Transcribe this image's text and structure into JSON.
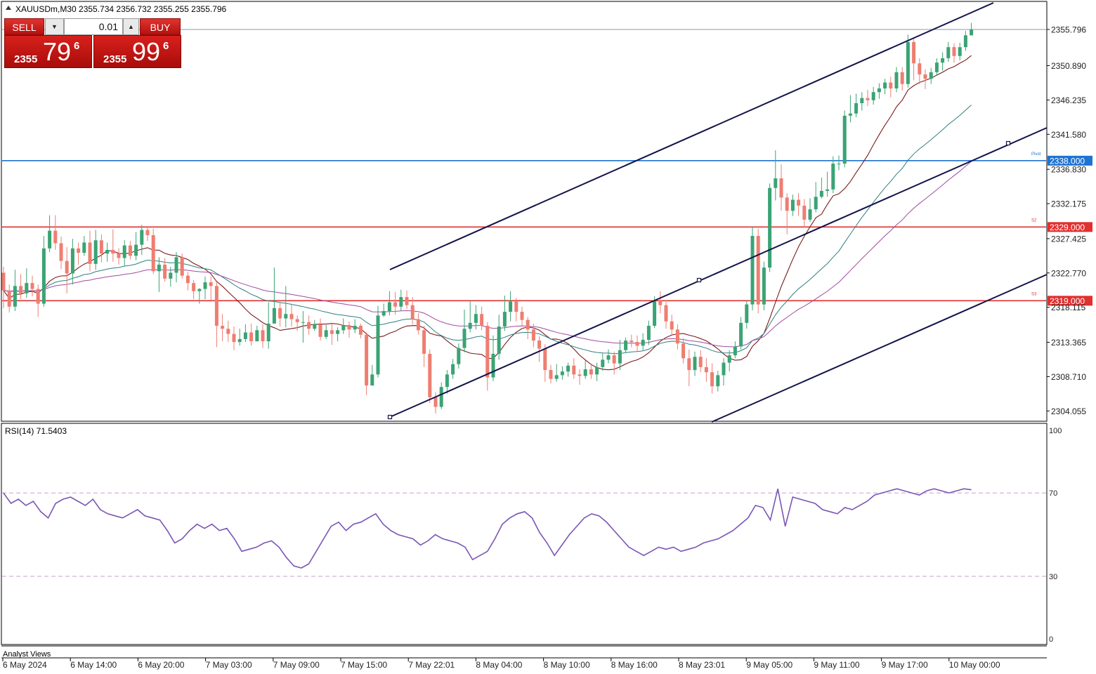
{
  "header": {
    "symbol_line": "XAUUSDm,M30 2355.734 2356.732 2355.255 2355.796"
  },
  "trade_panel": {
    "sell_label": "SELL",
    "buy_label": "BUY",
    "volume": "0.01",
    "sell_price": {
      "prefix": "2355",
      "big": "79",
      "sup": "6"
    },
    "buy_price": {
      "prefix": "2355",
      "big": "99",
      "sup": "6"
    }
  },
  "price_axis": {
    "ticks": [
      "2355.796",
      "2350.890",
      "2346.235",
      "2341.580",
      "2338.000",
      "2336.830",
      "2332.175",
      "2329.000",
      "2327.425",
      "2322.770",
      "2319.000",
      "2318.115",
      "2313.365",
      "2308.710",
      "2304.055"
    ]
  },
  "time_axis": {
    "labels": [
      "6 May 2024",
      "6 May 14:00",
      "6 May 20:00",
      "7 May 03:00",
      "7 May 09:00",
      "7 May 15:00",
      "7 May 22:01",
      "8 May 04:00",
      "8 May 10:00",
      "8 May 16:00",
      "8 May 23:01",
      "9 May 05:00",
      "9 May 11:00",
      "9 May 17:00",
      "10 May 00:00"
    ]
  },
  "levels": [
    {
      "price": 2338.0,
      "label": "2338.000",
      "color": "#1e73d2",
      "tag": "Pivot"
    },
    {
      "price": 2329.0,
      "label": "2329.000",
      "color": "#e03030",
      "tag": "S2"
    },
    {
      "price": 2319.0,
      "label": "2319.000",
      "color": "#e03030",
      "tag": "S3"
    }
  ],
  "rsi": {
    "label": "RSI(14) 71.5403",
    "levels": [
      70,
      30
    ],
    "axis_labels": [
      "100",
      "70",
      "30",
      "0"
    ],
    "values": [
      70,
      65,
      67,
      64,
      66,
      61,
      58,
      65,
      67,
      68,
      66,
      64,
      67,
      62,
      60,
      59,
      58,
      60,
      62,
      59,
      58,
      57,
      52,
      46,
      48,
      52,
      55,
      53,
      55,
      52,
      53,
      48,
      42,
      43,
      44,
      46,
      47,
      44,
      39,
      35,
      34,
      36,
      42,
      48,
      54,
      56,
      52,
      55,
      56,
      58,
      60,
      55,
      52,
      50,
      49,
      48,
      45,
      47,
      50,
      48,
      47,
      46,
      44,
      38,
      40,
      42,
      48,
      55,
      58,
      60,
      61,
      58,
      51,
      46,
      40,
      45,
      50,
      54,
      58,
      60,
      59,
      56,
      52,
      48,
      44,
      42,
      40,
      42,
      44,
      43,
      44,
      42,
      43,
      44,
      46,
      47,
      48,
      50,
      52,
      55,
      58,
      64,
      63,
      57,
      72,
      54,
      68,
      67,
      66,
      65,
      62,
      61,
      60,
      63,
      62,
      64,
      66,
      69,
      70,
      71,
      72,
      71,
      70,
      69,
      71,
      72,
      71,
      70,
      71,
      72,
      71.5
    ]
  },
  "footer": {
    "analyst_views": "Analyst Views"
  },
  "chart_data": {
    "type": "candlestick",
    "symbol": "XAUUSDm",
    "timeframe": "M30",
    "ylim": [
      2302.0,
      2358.0
    ],
    "candles": [
      [
        2322.8,
        2320.4,
        2323.6,
        2318.0
      ],
      [
        2320.4,
        2318.2,
        2321.2,
        2317.4
      ],
      [
        2318.2,
        2321.0,
        2323.2,
        2317.6
      ],
      [
        2321.0,
        2320.0,
        2322.6,
        2319.2
      ],
      [
        2320.0,
        2321.4,
        2323.4,
        2319.4
      ],
      [
        2321.4,
        2320.6,
        2322.4,
        2319.6
      ],
      [
        2320.6,
        2318.6,
        2321.2,
        2316.8
      ],
      [
        2318.6,
        2326.1,
        2327.8,
        2318.2
      ],
      [
        2326.1,
        2328.5,
        2330.6,
        2325.6
      ],
      [
        2328.5,
        2326.8,
        2330.6,
        2325.9
      ],
      [
        2326.8,
        2324.4,
        2327.7,
        2323.3
      ],
      [
        2324.4,
        2322.7,
        2326.3,
        2320.0
      ],
      [
        2322.7,
        2326.1,
        2327.4,
        2321.2
      ],
      [
        2326.1,
        2325.5,
        2326.9,
        2323.9
      ],
      [
        2325.5,
        2326.9,
        2327.8,
        2325.1
      ],
      [
        2326.9,
        2324.0,
        2328.5,
        2323.0
      ],
      [
        2324.0,
        2327.2,
        2328.6,
        2323.2
      ],
      [
        2327.2,
        2325.4,
        2328.0,
        2324.2
      ],
      [
        2325.4,
        2325.9,
        2326.9,
        2324.3
      ],
      [
        2325.9,
        2325.4,
        2328.7,
        2324.3
      ],
      [
        2325.4,
        2324.8,
        2326.1,
        2323.9
      ],
      [
        2324.8,
        2326.5,
        2327.2,
        2323.7
      ],
      [
        2326.5,
        2325.1,
        2327.1,
        2324.6
      ],
      [
        2325.1,
        2326.6,
        2328.3,
        2324.5
      ],
      [
        2326.6,
        2328.6,
        2329.3,
        2325.2
      ],
      [
        2328.6,
        2327.9,
        2329.0,
        2327.1
      ],
      [
        2327.9,
        2323.0,
        2328.8,
        2322.6
      ],
      [
        2323.0,
        2323.9,
        2324.9,
        2320.2
      ],
      [
        2323.9,
        2322.0,
        2324.8,
        2321.6
      ],
      [
        2322.0,
        2322.8,
        2323.6,
        2320.9
      ],
      [
        2322.8,
        2324.9,
        2325.6,
        2321.5
      ],
      [
        2324.9,
        2322.4,
        2325.4,
        2322.0
      ],
      [
        2322.4,
        2321.4,
        2322.9,
        2320.4
      ],
      [
        2321.4,
        2320.3,
        2321.8,
        2319.2
      ],
      [
        2320.3,
        2320.6,
        2320.7,
        2318.6
      ],
      [
        2320.6,
        2321.5,
        2322.3,
        2319.2
      ],
      [
        2321.5,
        2321.0,
        2322.3,
        2319.1
      ],
      [
        2321.0,
        2315.6,
        2321.6,
        2312.7
      ],
      [
        2315.6,
        2315.2,
        2317.2,
        2313.5
      ],
      [
        2315.2,
        2314.5,
        2316.3,
        2313.4
      ],
      [
        2314.5,
        2313.4,
        2315.5,
        2312.3
      ],
      [
        2313.4,
        2313.8,
        2315.2,
        2312.9
      ],
      [
        2313.8,
        2314.7,
        2315.8,
        2313.4
      ],
      [
        2314.7,
        2313.5,
        2315.9,
        2312.9
      ],
      [
        2313.5,
        2315.0,
        2315.6,
        2314.0
      ],
      [
        2315.0,
        2313.5,
        2315.8,
        2312.6
      ],
      [
        2313.5,
        2315.9,
        2318.8,
        2312.5
      ],
      [
        2315.9,
        2318.0,
        2323.5,
        2317.3
      ],
      [
        2318.0,
        2316.6,
        2319.1,
        2315.5
      ],
      [
        2316.6,
        2317.2,
        2321.0,
        2315.4
      ],
      [
        2317.2,
        2316.5,
        2318.6,
        2315.5
      ],
      [
        2316.5,
        2316.1,
        2317.0,
        2314.9
      ],
      [
        2316.1,
        2316.1,
        2317.6,
        2313.3
      ],
      [
        2316.1,
        2315.2,
        2317.0,
        2314.4
      ],
      [
        2315.2,
        2315.8,
        2316.4,
        2314.9
      ],
      [
        2315.8,
        2314.1,
        2316.6,
        2313.6
      ],
      [
        2314.1,
        2315.0,
        2315.7,
        2313.8
      ],
      [
        2315.0,
        2314.5,
        2315.9,
        2313.0
      ],
      [
        2314.5,
        2315.0,
        2315.4,
        2313.5
      ],
      [
        2315.0,
        2315.7,
        2316.6,
        2314.5
      ],
      [
        2315.7,
        2315.1,
        2316.2,
        2314.0
      ],
      [
        2315.1,
        2315.6,
        2316.5,
        2314.6
      ],
      [
        2315.6,
        2314.4,
        2315.9,
        2313.9
      ],
      [
        2314.4,
        2307.5,
        2314.7,
        2306.2
      ],
      [
        2307.5,
        2309.0,
        2310.3,
        2308.0
      ],
      [
        2309.0,
        2317.0,
        2318.3,
        2308.6
      ],
      [
        2317.0,
        2317.6,
        2318.6,
        2316.8
      ],
      [
        2317.6,
        2318.8,
        2320.3,
        2317.0
      ],
      [
        2318.8,
        2318.2,
        2320.2,
        2317.1
      ],
      [
        2318.2,
        2319.5,
        2320.5,
        2317.6
      ],
      [
        2319.5,
        2318.4,
        2320.4,
        2317.9
      ],
      [
        2318.4,
        2316.5,
        2319.5,
        2315.8
      ],
      [
        2316.5,
        2315.0,
        2317.3,
        2314.4
      ],
      [
        2315.0,
        2311.8,
        2315.6,
        2310.0
      ],
      [
        2311.8,
        2305.9,
        2312.4,
        2305.1
      ],
      [
        2305.9,
        2304.6,
        2306.6,
        2303.7
      ],
      [
        2304.6,
        2307.3,
        2307.9,
        2304.3
      ],
      [
        2307.3,
        2309.0,
        2309.6,
        2306.4
      ],
      [
        2309.0,
        2310.4,
        2311.1,
        2308.4
      ],
      [
        2310.4,
        2312.6,
        2313.2,
        2309.8
      ],
      [
        2312.6,
        2315.2,
        2317.8,
        2312.0
      ],
      [
        2315.2,
        2316.0,
        2319.0,
        2314.7
      ],
      [
        2316.0,
        2317.2,
        2318.4,
        2315.1
      ],
      [
        2317.2,
        2315.6,
        2318.2,
        2315.0
      ],
      [
        2315.6,
        2308.6,
        2316.1,
        2306.8
      ],
      [
        2308.6,
        2311.8,
        2314.3,
        2308.1
      ],
      [
        2311.8,
        2315.5,
        2317.1,
        2311.0
      ],
      [
        2315.5,
        2317.5,
        2319.7,
        2314.9
      ],
      [
        2317.5,
        2318.9,
        2320.3,
        2316.2
      ],
      [
        2318.9,
        2317.5,
        2319.4,
        2316.2
      ],
      [
        2317.5,
        2316.4,
        2318.2,
        2315.6
      ],
      [
        2316.4,
        2315.1,
        2316.8,
        2313.8
      ],
      [
        2315.1,
        2313.6,
        2315.9,
        2312.7
      ],
      [
        2313.6,
        2312.5,
        2314.2,
        2310.7
      ],
      [
        2312.5,
        2309.6,
        2313.1,
        2308.0
      ],
      [
        2309.6,
        2308.4,
        2310.3,
        2307.8
      ],
      [
        2308.4,
        2308.9,
        2310.4,
        2308.0
      ],
      [
        2308.9,
        2309.4,
        2310.1,
        2308.3
      ],
      [
        2309.4,
        2310.2,
        2310.6,
        2308.7
      ],
      [
        2310.2,
        2309.0,
        2311.2,
        2308.4
      ],
      [
        2309.0,
        2308.8,
        2309.7,
        2307.6
      ],
      [
        2308.8,
        2309.7,
        2310.9,
        2308.4
      ],
      [
        2309.7,
        2309.0,
        2310.5,
        2308.4
      ],
      [
        2309.0,
        2310.0,
        2310.6,
        2308.1
      ],
      [
        2310.0,
        2311.0,
        2311.9,
        2309.5
      ],
      [
        2311.0,
        2311.6,
        2312.4,
        2310.5
      ],
      [
        2311.6,
        2310.5,
        2312.1,
        2309.0
      ],
      [
        2310.5,
        2312.3,
        2313.7,
        2309.6
      ],
      [
        2312.3,
        2313.6,
        2314.0,
        2311.9
      ],
      [
        2313.6,
        2313.4,
        2314.4,
        2312.7
      ],
      [
        2313.4,
        2312.9,
        2314.3,
        2312.1
      ],
      [
        2312.9,
        2313.7,
        2314.6,
        2312.3
      ],
      [
        2313.7,
        2315.6,
        2316.3,
        2313.0
      ],
      [
        2315.6,
        2319.0,
        2319.6,
        2315.3
      ],
      [
        2319.0,
        2318.4,
        2320.3,
        2317.3
      ],
      [
        2318.4,
        2316.2,
        2319.1,
        2315.2
      ],
      [
        2316.2,
        2315.1,
        2317.1,
        2314.4
      ],
      [
        2315.1,
        2313.2,
        2315.8,
        2312.4
      ],
      [
        2313.2,
        2311.2,
        2313.9,
        2310.5
      ],
      [
        2311.2,
        2309.6,
        2312.4,
        2307.4
      ],
      [
        2309.6,
        2311.4,
        2312.1,
        2308.8
      ],
      [
        2311.4,
        2310.0,
        2312.3,
        2309.3
      ],
      [
        2310.0,
        2309.3,
        2311.2,
        2308.0
      ],
      [
        2309.3,
        2307.4,
        2310.5,
        2306.4
      ],
      [
        2307.4,
        2308.9,
        2309.5,
        2306.7
      ],
      [
        2308.9,
        2310.6,
        2311.2,
        2307.5
      ],
      [
        2310.6,
        2311.6,
        2312.3,
        2309.4
      ],
      [
        2311.6,
        2312.8,
        2313.5,
        2311.2
      ],
      [
        2312.8,
        2316.0,
        2316.8,
        2312.4
      ],
      [
        2316.0,
        2318.5,
        2319.0,
        2315.2
      ],
      [
        2318.5,
        2327.8,
        2329.0,
        2317.7
      ],
      [
        2327.8,
        2318.5,
        2328.8,
        2317.3
      ],
      [
        2318.5,
        2323.5,
        2324.3,
        2317.7
      ],
      [
        2323.5,
        2334.3,
        2334.9,
        2322.9
      ],
      [
        2334.3,
        2335.6,
        2339.4,
        2332.6
      ],
      [
        2335.6,
        2333.0,
        2337.5,
        2331.2
      ],
      [
        2333.0,
        2331.2,
        2333.6,
        2328.0
      ],
      [
        2331.2,
        2332.7,
        2333.4,
        2330.5
      ],
      [
        2332.7,
        2331.9,
        2333.6,
        2330.5
      ],
      [
        2331.9,
        2330.0,
        2332.8,
        2329.0
      ],
      [
        2330.0,
        2331.4,
        2332.9,
        2329.7
      ],
      [
        2331.4,
        2333.1,
        2335.1,
        2331.0
      ],
      [
        2333.1,
        2333.9,
        2335.7,
        2332.9
      ],
      [
        2333.9,
        2334.1,
        2336.5,
        2333.1
      ],
      [
        2334.1,
        2337.6,
        2338.6,
        2333.6
      ],
      [
        2337.6,
        2337.6,
        2338.7,
        2336.7
      ],
      [
        2337.6,
        2344.1,
        2344.8,
        2337.1
      ],
      [
        2344.1,
        2344.4,
        2346.9,
        2343.2
      ],
      [
        2344.4,
        2345.8,
        2347.1,
        2343.9
      ],
      [
        2345.8,
        2346.5,
        2347.3,
        2344.8
      ],
      [
        2346.5,
        2346.2,
        2347.6,
        2345.4
      ],
      [
        2346.2,
        2347.3,
        2348.0,
        2345.6
      ],
      [
        2347.3,
        2347.8,
        2348.5,
        2346.4
      ],
      [
        2347.8,
        2348.6,
        2349.1,
        2347.0
      ],
      [
        2348.6,
        2347.8,
        2349.4,
        2346.6
      ],
      [
        2347.8,
        2350.0,
        2350.7,
        2347.3
      ],
      [
        2350.0,
        2348.4,
        2350.7,
        2347.5
      ],
      [
        2348.4,
        2354.1,
        2355.1,
        2347.9
      ],
      [
        2354.1,
        2351.2,
        2354.5,
        2348.9
      ],
      [
        2351.2,
        2349.7,
        2351.9,
        2348.4
      ],
      [
        2349.7,
        2349.1,
        2350.4,
        2347.7
      ],
      [
        2349.1,
        2350.0,
        2350.6,
        2348.4
      ],
      [
        2350.0,
        2351.3,
        2351.9,
        2349.5
      ],
      [
        2351.3,
        2351.9,
        2352.7,
        2350.2
      ],
      [
        2351.9,
        2353.4,
        2354.1,
        2351.4
      ],
      [
        2353.4,
        2352.2,
        2353.9,
        2351.3
      ],
      [
        2352.2,
        2353.4,
        2354.0,
        2351.6
      ],
      [
        2353.4,
        2355.0,
        2355.6,
        2352.9
      ],
      [
        2355.0,
        2355.8,
        2356.7,
        2355.3
      ]
    ]
  }
}
